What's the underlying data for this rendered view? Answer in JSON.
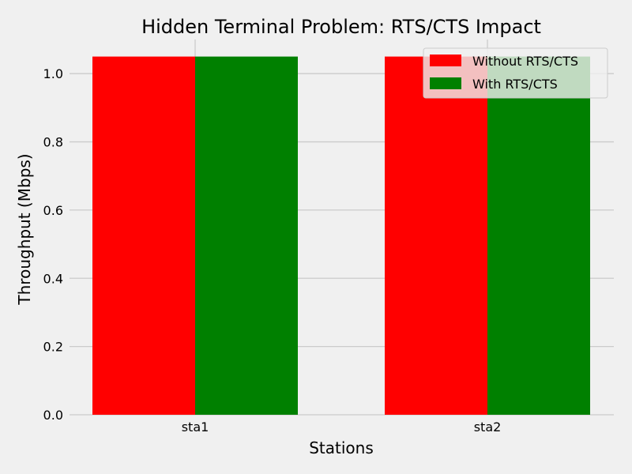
{
  "chart_data": {
    "type": "bar",
    "title": "Hidden Terminal Problem: RTS/CTS Impact",
    "xlabel": "Stations",
    "ylabel": "Throughput (Mbps)",
    "categories": [
      "sta1",
      "sta2"
    ],
    "series": [
      {
        "name": "Without RTS/CTS",
        "color": "#ff0000",
        "values": [
          1.05,
          1.05
        ]
      },
      {
        "name": "With RTS/CTS",
        "color": "#008000",
        "values": [
          1.05,
          1.05
        ]
      }
    ],
    "ylim": [
      0,
      1.1
    ],
    "yticks": [
      0.0,
      0.2,
      0.4,
      0.6,
      0.8,
      1.0
    ],
    "ytick_labels": [
      "0.0",
      "0.2",
      "0.4",
      "0.6",
      "0.8",
      "1.0"
    ],
    "grid": true,
    "legend_position": "top-right",
    "background_color": "#f0f0f0",
    "grid_color": "#cbcbcb"
  }
}
